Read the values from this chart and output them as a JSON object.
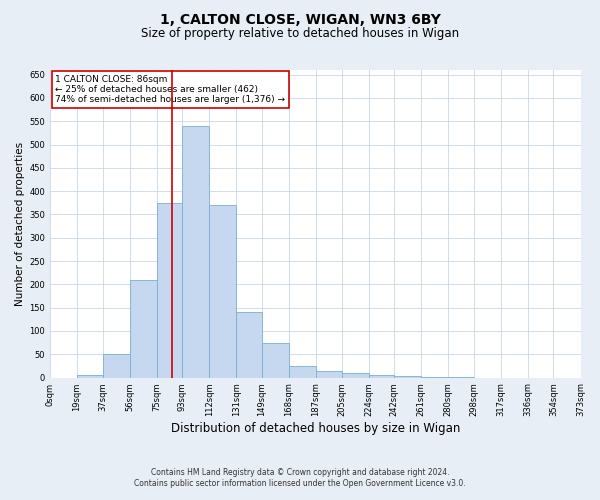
{
  "title_line1": "1, CALTON CLOSE, WIGAN, WN3 6BY",
  "title_line2": "Size of property relative to detached houses in Wigan",
  "xlabel": "Distribution of detached houses by size in Wigan",
  "ylabel": "Number of detached properties",
  "bin_edges": [
    0,
    19,
    37,
    56,
    75,
    93,
    112,
    131,
    149,
    168,
    187,
    205,
    224,
    242,
    261,
    280,
    298,
    317,
    336,
    354,
    373
  ],
  "bar_heights": [
    0,
    5,
    50,
    210,
    375,
    540,
    370,
    140,
    75,
    25,
    15,
    10,
    5,
    3,
    1,
    1,
    0,
    0,
    0,
    0
  ],
  "bar_color": "#c5d8f0",
  "bar_edge_color": "#7aafd4",
  "property_size": 86,
  "property_line_color": "#cc0000",
  "annotation_text": "1 CALTON CLOSE: 86sqm\n← 25% of detached houses are smaller (462)\n74% of semi-detached houses are larger (1,376) →",
  "annotation_box_color": "#ffffff",
  "annotation_box_edge_color": "#cc0000",
  "ylim": [
    0,
    660
  ],
  "yticks": [
    0,
    50,
    100,
    150,
    200,
    250,
    300,
    350,
    400,
    450,
    500,
    550,
    600,
    650
  ],
  "bg_color": "#e8eef5",
  "plot_bg_color": "#ffffff",
  "grid_color": "#c8d8e8",
  "footer_line1": "Contains HM Land Registry data © Crown copyright and database right 2024.",
  "footer_line2": "Contains public sector information licensed under the Open Government Licence v3.0.",
  "tick_labels": [
    "0sqm",
    "19sqm",
    "37sqm",
    "56sqm",
    "75sqm",
    "93sqm",
    "112sqm",
    "131sqm",
    "149sqm",
    "168sqm",
    "187sqm",
    "205sqm",
    "224sqm",
    "242sqm",
    "261sqm",
    "280sqm",
    "298sqm",
    "317sqm",
    "336sqm",
    "354sqm",
    "373sqm"
  ],
  "title1_fontsize": 10,
  "title2_fontsize": 8.5,
  "xlabel_fontsize": 8.5,
  "ylabel_fontsize": 7.5,
  "tick_fontsize": 6.0,
  "footer_fontsize": 5.5
}
